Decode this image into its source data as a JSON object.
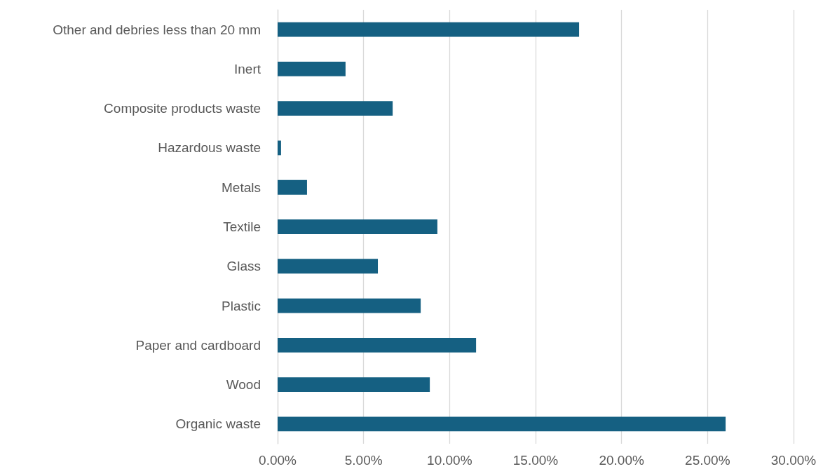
{
  "chart_data": {
    "type": "bar",
    "orientation": "horizontal",
    "categories": [
      "Other and debries less than 20 mm",
      "Inert",
      "Composite products waste",
      "Hazardous waste",
      "Metals",
      "Textile",
      "Glass",
      "Plastic",
      "Paper and cardboard",
      "Wood",
      "Organic waste"
    ],
    "values": [
      17.53,
      3.95,
      6.69,
      0.2,
      1.71,
      9.29,
      5.83,
      8.32,
      11.54,
      8.85,
      26.05
    ],
    "color": "#156082",
    "xlim": [
      0,
      30
    ],
    "xticks": [
      {
        "value": 0,
        "label": "0.00%"
      },
      {
        "value": 5,
        "label": "5.00%"
      },
      {
        "value": 10,
        "label": "10.00%"
      },
      {
        "value": 15,
        "label": "15.00%"
      },
      {
        "value": 20,
        "label": "20.00%"
      },
      {
        "value": 25,
        "label": "25.00%"
      },
      {
        "value": 30,
        "label": "30.00%"
      }
    ],
    "grid": "x"
  }
}
